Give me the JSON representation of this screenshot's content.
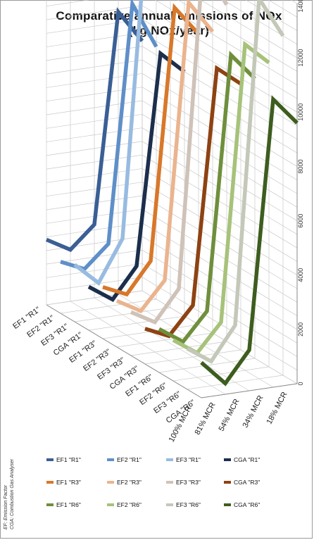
{
  "chart_data": {
    "type": "line",
    "title": "Comparative annual emissions of NOx",
    "subtitle": "(kg NOx/year)",
    "categories": [
      "100% MCR",
      "81% MCR",
      "54% MCR",
      "34% MCR",
      "18% MCR"
    ],
    "zlim": [
      0,
      14000
    ],
    "ztick_labels": [
      "0",
      "2000",
      "4000",
      "6000",
      "8000",
      "10000",
      "12000",
      "14000"
    ],
    "grid": true,
    "legend_position": "bottom",
    "series": [
      {
        "name": "EF1 \"R1\"",
        "color": "#3a5f95",
        "values": [
          2400,
          1900,
          2700,
          10400,
          9200
        ]
      },
      {
        "name": "EF2 \"R1\"",
        "color": "#5f8fc8",
        "values": [
          1900,
          1500,
          2300,
          11000,
          9300
        ]
      },
      {
        "name": "EF3 \"R1\"",
        "color": "#98bbe0",
        "values": [
          2100,
          1300,
          2800,
          14000,
          12200
        ]
      },
      {
        "name": "CGA \"R1\"",
        "color": "#1c2e4c",
        "values": [
          1600,
          1000,
          2100,
          9800,
          9000
        ]
      },
      {
        "name": "EF1 \"R3\"",
        "color": "#d8782a",
        "values": [
          1900,
          1500,
          2600,
          11800,
          10700
        ]
      },
      {
        "name": "EF2 \"R3\"",
        "color": "#eab48e",
        "values": [
          1700,
          1200,
          2200,
          12300,
          11100
        ]
      },
      {
        "name": "EF3 \"R3\"",
        "color": "#cfc2b8",
        "values": [
          1600,
          1100,
          2200,
          14000,
          12400
        ]
      },
      {
        "name": "CGA \"R3\"",
        "color": "#8e4212",
        "values": [
          1300,
          900,
          1900,
          10500,
          9800
        ]
      },
      {
        "name": "EF1 \"R6\"",
        "color": "#6f8f3c",
        "values": [
          1600,
          1000,
          2000,
          11300,
          10300
        ]
      },
      {
        "name": "EF2 \"R6\"",
        "color": "#a7c27a",
        "values": [
          1500,
          900,
          1900,
          12000,
          11200
        ]
      },
      {
        "name": "EF3 \"R6\"",
        "color": "#c3c8b8",
        "values": [
          1500,
          900,
          2100,
          14000,
          12500
        ]
      },
      {
        "name": "CGA \"R6\"",
        "color": "#3d5d1e",
        "values": [
          1300,
          400,
          1500,
          10600,
          9600
        ]
      }
    ],
    "footnote": [
      "EF: Emission Factor",
      "CGA: Combustion Gas Analyser"
    ]
  }
}
